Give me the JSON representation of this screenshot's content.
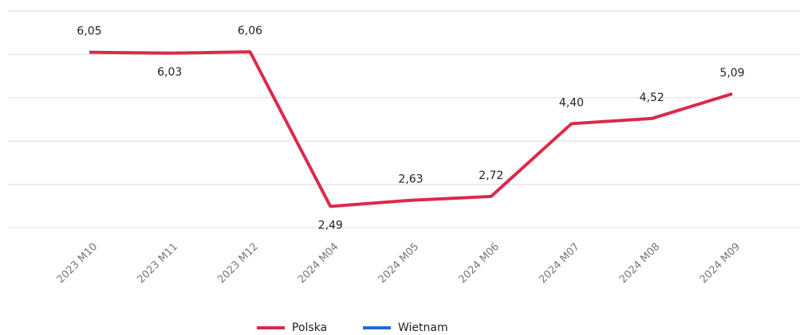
{
  "chart_data": {
    "type": "line",
    "categories": [
      "2023 M10",
      "2023 M11",
      "2023 M12",
      "2024 M04",
      "2024 M05",
      "2024 M06",
      "2024 M07",
      "2024 M08",
      "2024 M09"
    ],
    "series": [
      {
        "name": "Polska",
        "color": "#d92b4b",
        "values": [
          6.05,
          6.03,
          6.06,
          2.49,
          2.63,
          2.72,
          4.4,
          4.52,
          5.09
        ],
        "value_labels": [
          "6,05",
          "6,03",
          "6,06",
          "2,49",
          "2,63",
          "2,72",
          "4,40",
          "4,52",
          "5,09"
        ]
      },
      {
        "name": "Wietnam",
        "color": "#1f6fd6",
        "values": [
          null,
          null,
          null,
          null,
          null,
          null,
          null,
          null,
          null
        ]
      }
    ],
    "ylim": [
      2,
      7
    ],
    "yticks": [
      2,
      3,
      4,
      5,
      6,
      7
    ],
    "grid": true,
    "legend": "bottom"
  }
}
